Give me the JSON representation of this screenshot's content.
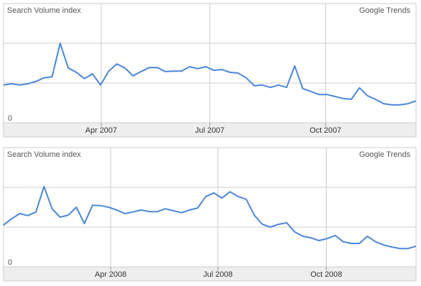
{
  "chart_data": [
    {
      "type": "line",
      "y_label": "Search Volume index",
      "source": "Google Trends",
      "xlim": [
        0,
        51
      ],
      "xticks": [
        {
          "value": 12.07,
          "label": "Apr 2007"
        },
        {
          "value": 25.5,
          "label": "Jul 2007"
        },
        {
          "value": 39.8,
          "label": "Oct 2007"
        }
      ],
      "ylim": [
        0,
        3
      ],
      "yticks": [
        0,
        {
          "value": 1,
          "label": null
        },
        {
          "value": 2,
          "label": null
        }
      ],
      "grid": true,
      "series": [
        {
          "color": "#4a86d8",
          "values": [
            0.95,
            0.98,
            0.95,
            0.98,
            1.04,
            1.13,
            1.16,
            2.0,
            1.38,
            1.27,
            1.11,
            1.23,
            0.95,
            1.3,
            1.48,
            1.38,
            1.18,
            1.29,
            1.39,
            1.39,
            1.29,
            1.3,
            1.3,
            1.41,
            1.36,
            1.41,
            1.32,
            1.34,
            1.27,
            1.25,
            1.13,
            0.93,
            0.95,
            0.89,
            0.95,
            0.89,
            1.43,
            0.86,
            0.79,
            0.71,
            0.71,
            0.66,
            0.61,
            0.59,
            0.88,
            0.68,
            0.59,
            0.48,
            0.45,
            0.45,
            0.48,
            0.55
          ]
        }
      ]
    },
    {
      "type": "line",
      "y_label": "Search Volume index",
      "source": "Google Trends",
      "xlim": [
        0,
        51
      ],
      "xticks": [
        {
          "value": 13.24,
          "label": "Apr 2008"
        },
        {
          "value": 26.5,
          "label": "Jul 2008"
        },
        {
          "value": 39.9,
          "label": "Oct 2008"
        }
      ],
      "ylim": [
        0,
        3
      ],
      "yticks": [
        0,
        {
          "value": 1,
          "label": null
        },
        {
          "value": 2,
          "label": null
        }
      ],
      "grid": true,
      "series": [
        {
          "color": "#4a86d8",
          "values": [
            1.05,
            1.21,
            1.34,
            1.29,
            1.38,
            2.02,
            1.46,
            1.25,
            1.3,
            1.5,
            1.09,
            1.55,
            1.54,
            1.5,
            1.43,
            1.34,
            1.38,
            1.43,
            1.39,
            1.39,
            1.46,
            1.41,
            1.36,
            1.43,
            1.48,
            1.77,
            1.86,
            1.73,
            1.89,
            1.77,
            1.7,
            1.3,
            1.07,
            1.0,
            1.07,
            1.11,
            0.88,
            0.77,
            0.73,
            0.66,
            0.71,
            0.79,
            0.63,
            0.59,
            0.59,
            0.77,
            0.63,
            0.55,
            0.5,
            0.46,
            0.46,
            0.52
          ]
        }
      ]
    }
  ]
}
